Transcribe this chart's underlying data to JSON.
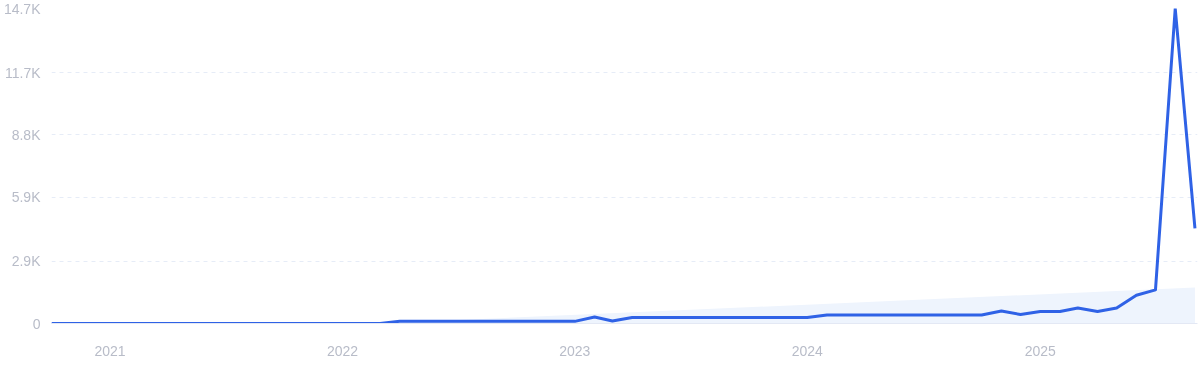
{
  "chart_data": {
    "type": "line",
    "x": [
      "2020-10",
      "2020-11",
      "2020-12",
      "2021-01",
      "2021-02",
      "2021-03",
      "2021-04",
      "2021-05",
      "2021-06",
      "2021-07",
      "2021-08",
      "2021-09",
      "2021-10",
      "2021-11",
      "2021-12",
      "2022-01",
      "2022-02",
      "2022-03",
      "2022-04",
      "2022-05",
      "2022-06",
      "2022-07",
      "2022-08",
      "2022-09",
      "2022-10",
      "2022-11",
      "2022-12",
      "2023-01",
      "2023-02",
      "2023-03",
      "2023-04",
      "2023-05",
      "2023-06",
      "2023-07",
      "2023-08",
      "2023-09",
      "2023-10",
      "2023-11",
      "2023-12",
      "2024-01",
      "2024-02",
      "2024-03",
      "2024-04",
      "2024-05",
      "2024-06",
      "2024-07",
      "2024-08",
      "2024-09",
      "2024-10",
      "2024-11",
      "2024-12",
      "2025-01",
      "2025-02",
      "2025-03",
      "2025-04",
      "2025-05",
      "2025-06",
      "2025-07",
      "2025-08",
      "2025-09"
    ],
    "series": [
      {
        "type": "area",
        "color": "#eef4fd",
        "x": [
          "2022-03",
          "2025-09"
        ],
        "values": [
          0,
          1680
        ]
      },
      {
        "color": "#2f62e6",
        "values": [
          0,
          0,
          0,
          0,
          0,
          0,
          0,
          0,
          0,
          0,
          0,
          0,
          0,
          0,
          0,
          0,
          0,
          0,
          100,
          100,
          100,
          100,
          100,
          100,
          100,
          100,
          100,
          100,
          300,
          120,
          280,
          280,
          280,
          280,
          280,
          280,
          280,
          280,
          280,
          280,
          400,
          400,
          400,
          400,
          400,
          400,
          400,
          400,
          400,
          580,
          420,
          560,
          560,
          720,
          560,
          720,
          1320,
          1570,
          14700,
          4440
        ]
      }
    ],
    "xlim": [
      "2020-10",
      "2025-09-05"
    ],
    "xticks": [
      "2021",
      "2022",
      "2023",
      "2024",
      "2025"
    ],
    "ylim": [
      0,
      14700
    ],
    "yticks": [
      0,
      {
        "value": 2900,
        "label": "2.9K"
      },
      {
        "value": 5900,
        "label": "5.9K"
      },
      {
        "value": 8800,
        "label": "8.8K"
      },
      {
        "value": 11700,
        "label": "11.7K"
      },
      {
        "value": 14700,
        "label": "14.7K"
      }
    ],
    "grid": "y",
    "marker": "none",
    "line_style": "solid"
  }
}
